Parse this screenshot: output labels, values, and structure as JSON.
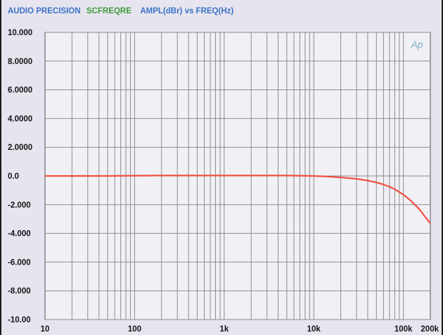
{
  "header": {
    "part1": "AUDIO PRECISION",
    "part2": "SCFREQRE",
    "part3": "AMPL(dBr) vs FREQ(Hz)",
    "logo": "Ap"
  },
  "colors": {
    "title_blue": "#3a72c8",
    "title_green": "#3f9a3a",
    "plot_bg": "#f1f0f5",
    "grid": "#8c8c8c",
    "trace": "#f05040"
  },
  "chart_data": {
    "type": "line",
    "x_scale": "log",
    "xlim": [
      10,
      200000
    ],
    "ylim": [
      -10,
      10
    ],
    "y_ticks": [
      {
        "value": 10,
        "label": "10.000"
      },
      {
        "value": 8,
        "label": "8.0000"
      },
      {
        "value": 6,
        "label": "6.0000"
      },
      {
        "value": 4,
        "label": "4.0000"
      },
      {
        "value": 2,
        "label": "2.0000"
      },
      {
        "value": 0,
        "label": "0.0"
      },
      {
        "value": -2,
        "label": "-2.000"
      },
      {
        "value": -4,
        "label": "-4.000"
      },
      {
        "value": -6,
        "label": "-6.000"
      },
      {
        "value": -8,
        "label": "-8.000"
      },
      {
        "value": -10,
        "label": "-10.00"
      }
    ],
    "x_ticks": [
      {
        "value": 10,
        "label": "10"
      },
      {
        "value": 100,
        "label": "100"
      },
      {
        "value": 1000,
        "label": "1k"
      },
      {
        "value": 10000,
        "label": "10k"
      },
      {
        "value": 100000,
        "label": "100k"
      },
      {
        "value": 200000,
        "label": "200k"
      }
    ],
    "grid": true,
    "series": [
      {
        "color": "#f05040",
        "x": [
          10,
          20,
          50,
          100,
          200,
          500,
          1000,
          2000,
          5000,
          10000,
          15000,
          20000,
          30000,
          40000,
          50000,
          60000,
          70000,
          80000,
          100000,
          120000,
          150000,
          175000,
          200000
        ],
        "y": [
          0.0,
          0.0,
          0.0,
          0.02,
          0.03,
          0.03,
          0.03,
          0.03,
          0.03,
          0.0,
          -0.05,
          -0.1,
          -0.2,
          -0.32,
          -0.45,
          -0.6,
          -0.75,
          -0.92,
          -1.3,
          -1.7,
          -2.3,
          -2.85,
          -3.3
        ]
      }
    ]
  }
}
